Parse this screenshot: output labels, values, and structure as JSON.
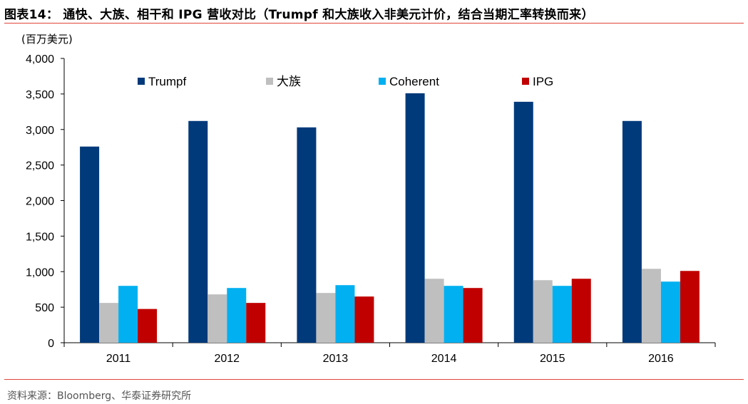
{
  "title": "图表14：  通快、大族、相干和 IPG 营收对比（Trumpf 和大族收入非美元计价，结合当期汇率转换而来）",
  "unit": "(百万美元)",
  "source": "资料来源：Bloomberg、华泰证券研究所",
  "colors": {
    "Trumpf": "#003a7a",
    "大族": "#bfbfbf",
    "Coherent": "#00b0f0",
    "IPG": "#c00000",
    "accent_line": "#e0453a"
  },
  "chart_data": {
    "type": "bar",
    "categories": [
      "2011",
      "2012",
      "2013",
      "2014",
      "2015",
      "2016"
    ],
    "series": [
      {
        "name": "Trumpf",
        "values": [
          2760,
          3120,
          3030,
          3510,
          3390,
          3120
        ]
      },
      {
        "name": "大族",
        "values": [
          560,
          680,
          700,
          900,
          880,
          1040
        ]
      },
      {
        "name": "Coherent",
        "values": [
          800,
          770,
          810,
          800,
          800,
          860
        ]
      },
      {
        "name": "IPG",
        "values": [
          475,
          560,
          650,
          770,
          900,
          1010
        ]
      }
    ],
    "y_ticks": [
      "0",
      "500",
      "1,000",
      "1,500",
      "2,000",
      "2,500",
      "3,000",
      "3,500",
      "4,000"
    ],
    "ylim": [
      0,
      4000
    ],
    "grid": false,
    "legend_position": "top"
  }
}
